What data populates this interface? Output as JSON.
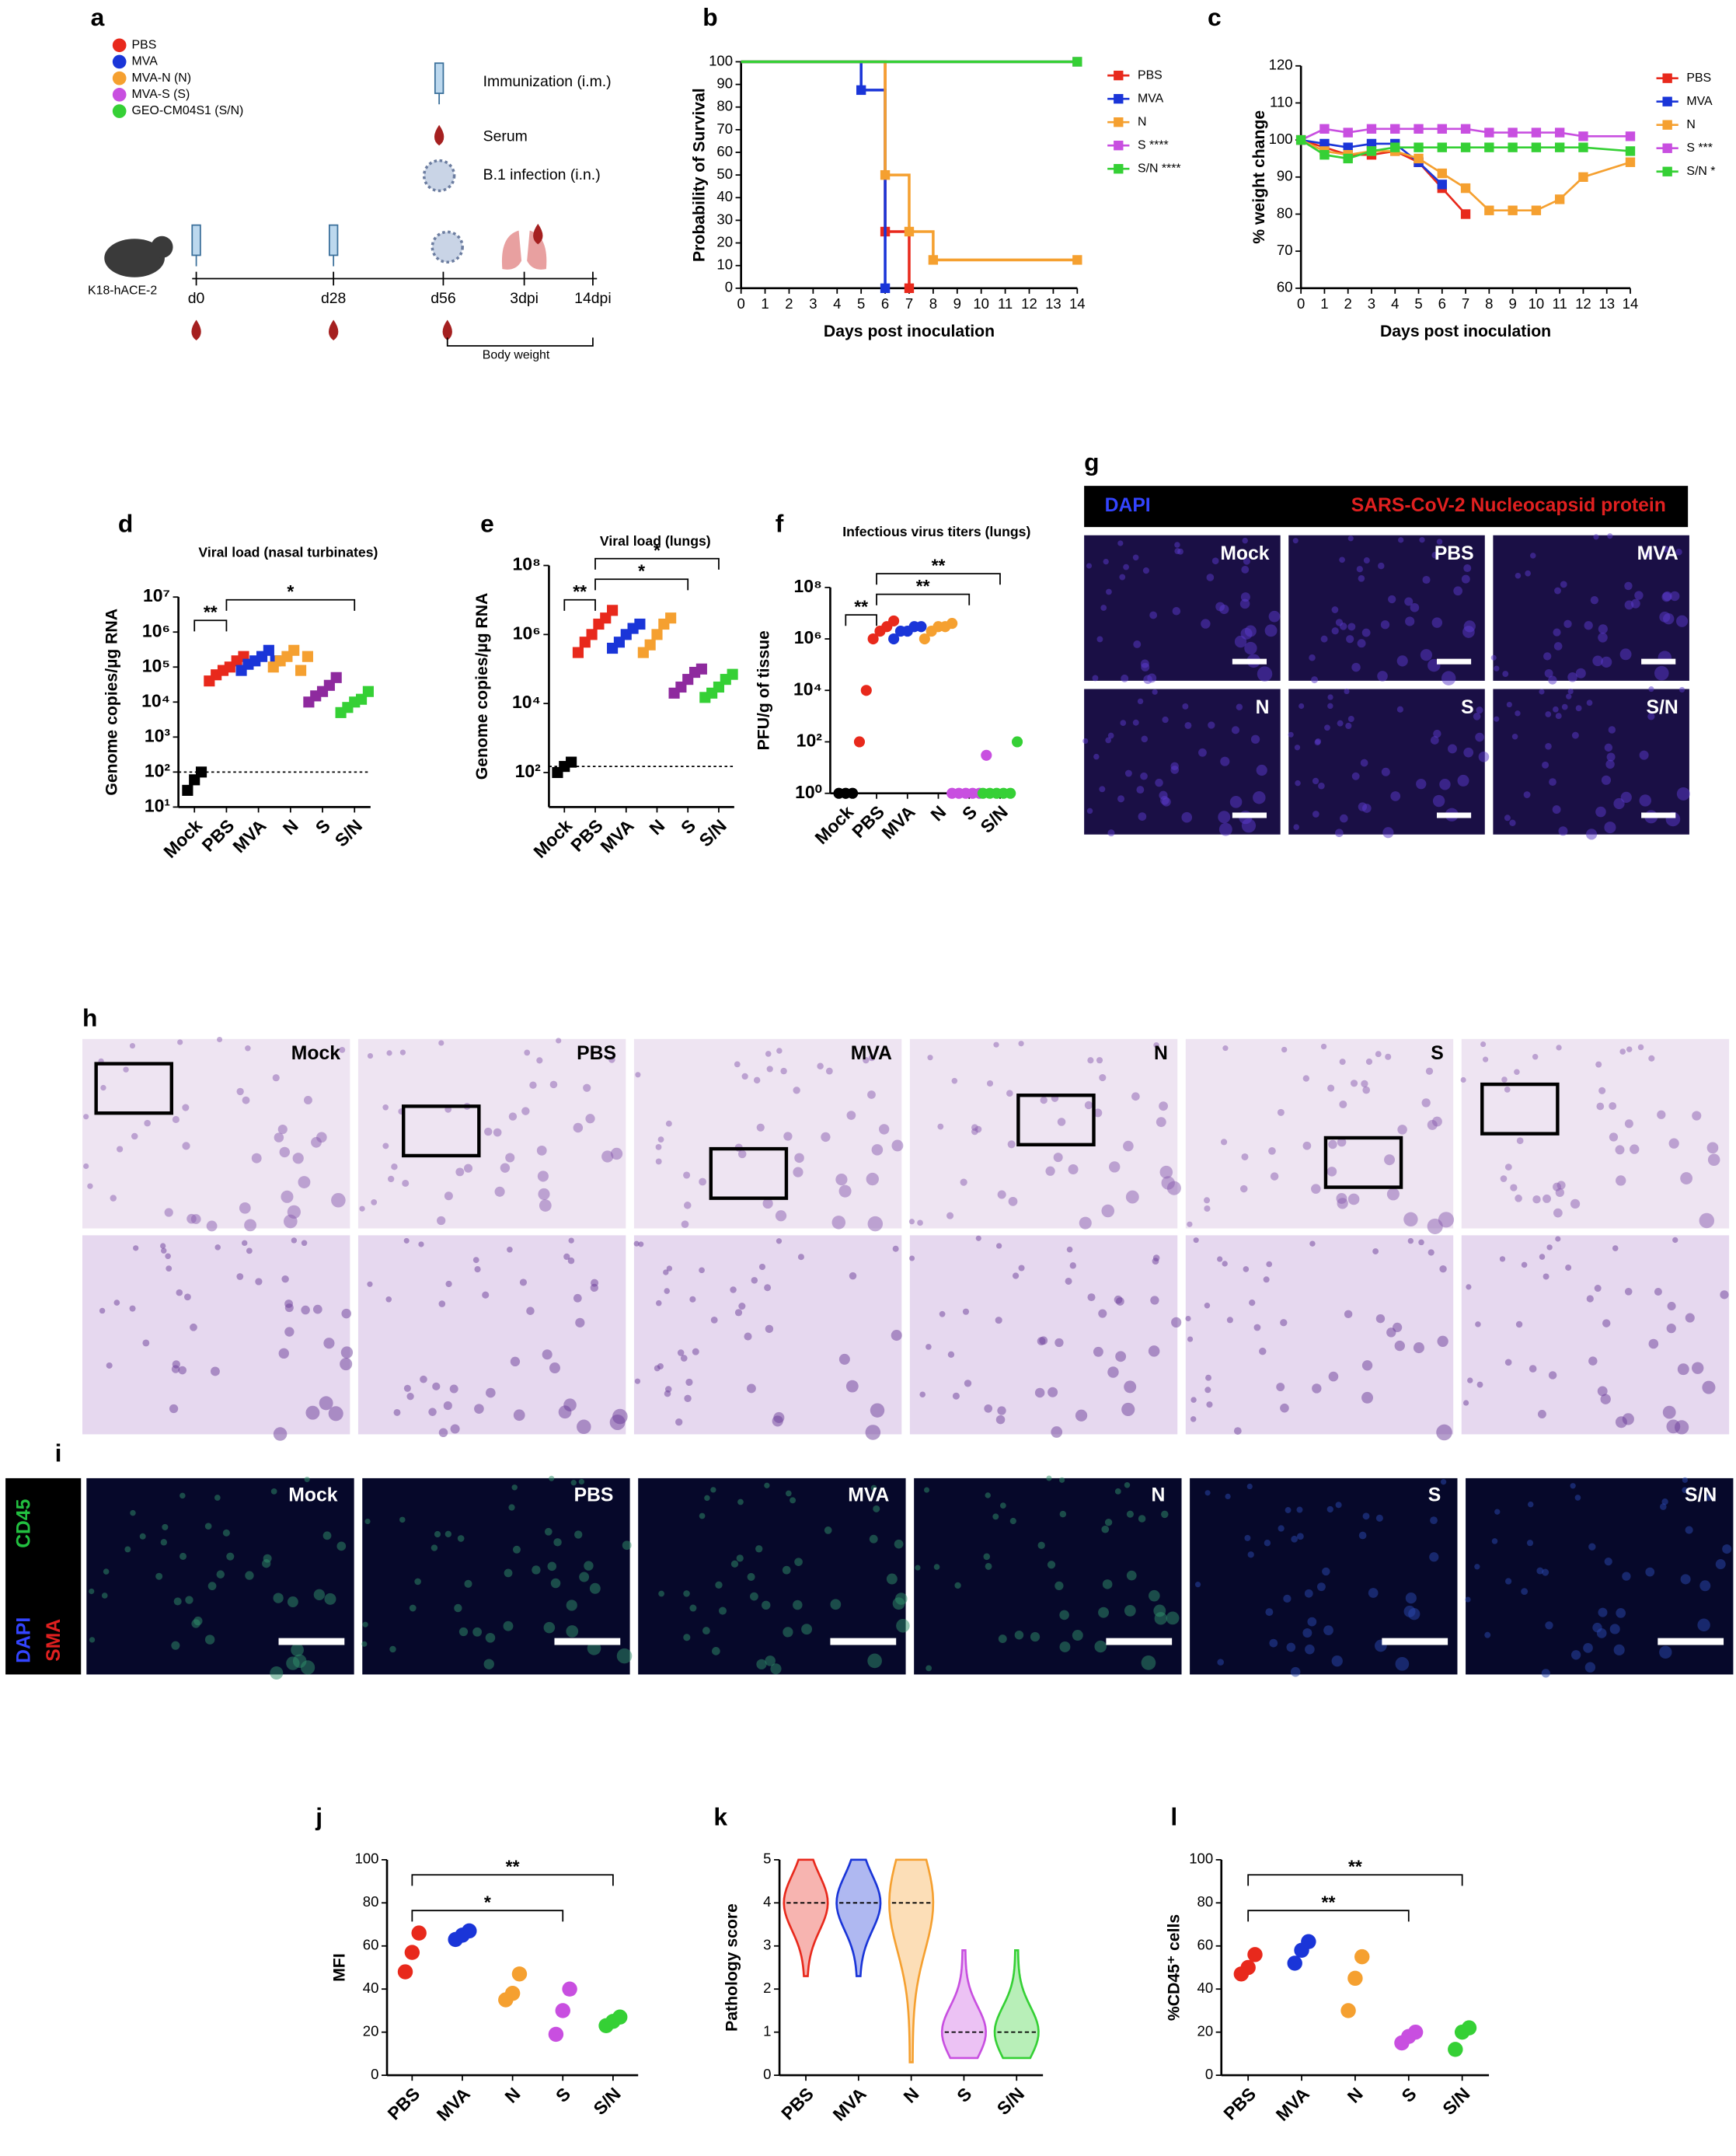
{
  "panel_a": {
    "panel": "a",
    "legend": [
      {
        "name": "PBS",
        "color": "#e8291c"
      },
      {
        "name": "MVA",
        "color": "#1a35d8"
      },
      {
        "name": "MVA-N (N)",
        "color": "#f5a030"
      },
      {
        "name": "MVA-S (S)",
        "color": "#c84fe0"
      },
      {
        "name": "GEO-CM04S1 (S/N)",
        "color": "#35d035"
      }
    ],
    "icons": [
      "Immunization (i.m.)",
      "Serum",
      "B.1 infection (i.n.)"
    ],
    "mouse": "K18-hACE-2",
    "timeline": [
      "d0",
      "d28",
      "d56",
      "3dpi",
      "14dpi"
    ],
    "bracket": "Body weight"
  },
  "chart_data": [
    {
      "type": "line",
      "panel": "b",
      "step": true,
      "ylabel": "Probability of Survival",
      "xlabel": "Days post inoculation",
      "xlim": [
        0,
        14
      ],
      "xticks": [
        0,
        1,
        2,
        3,
        4,
        5,
        6,
        7,
        8,
        9,
        10,
        11,
        12,
        13,
        14
      ],
      "ylim": [
        0,
        100
      ],
      "yticks": [
        0,
        10,
        20,
        30,
        40,
        50,
        60,
        70,
        80,
        90,
        100
      ],
      "series": [
        {
          "name": "PBS",
          "color": "#e8291c",
          "x": [
            0,
            6,
            7
          ],
          "values": [
            100,
            25,
            0
          ]
        },
        {
          "name": "MVA",
          "color": "#1a35d8",
          "x": [
            0,
            5,
            6
          ],
          "values": [
            100,
            87.5,
            0
          ]
        },
        {
          "name": "N",
          "color": "#f5a030",
          "x": [
            0,
            6,
            7,
            8,
            14
          ],
          "values": [
            100,
            50,
            25,
            12.5,
            12.5
          ]
        },
        {
          "name": "S ****",
          "color": "#c84fe0",
          "x": [
            0,
            14
          ],
          "values": [
            100,
            100
          ]
        },
        {
          "name": "S/N ****",
          "color": "#35d035",
          "x": [
            0,
            14
          ],
          "values": [
            100,
            100
          ]
        }
      ]
    },
    {
      "type": "line",
      "panel": "c",
      "ylabel": "% weight change",
      "xlabel": "Days post inoculation",
      "xlim": [
        0,
        14
      ],
      "xticks": [
        0,
        1,
        2,
        3,
        4,
        5,
        6,
        7,
        8,
        9,
        10,
        11,
        12,
        13,
        14
      ],
      "ylim": [
        60,
        120
      ],
      "yticks": [
        60,
        70,
        80,
        90,
        100,
        110,
        120
      ],
      "series": [
        {
          "name": "PBS",
          "color": "#e8291c",
          "x": [
            0,
            1,
            2,
            3,
            4,
            5,
            6,
            7
          ],
          "values": [
            100,
            98,
            96,
            96,
            97,
            94,
            87,
            80
          ]
        },
        {
          "name": "MVA",
          "color": "#1a35d8",
          "x": [
            0,
            1,
            2,
            3,
            4,
            5,
            6
          ],
          "values": [
            100,
            99,
            98,
            99,
            99,
            94,
            88
          ]
        },
        {
          "name": "N",
          "color": "#f5a030",
          "x": [
            0,
            1,
            2,
            3,
            4,
            5,
            6,
            7,
            8,
            9,
            10,
            11,
            12,
            14
          ],
          "values": [
            100,
            97,
            96,
            97,
            97,
            95,
            91,
            87,
            81,
            81,
            81,
            84,
            90,
            94
          ]
        },
        {
          "name": "S ***",
          "color": "#c84fe0",
          "x": [
            0,
            1,
            2,
            3,
            4,
            5,
            6,
            7,
            8,
            9,
            10,
            11,
            12,
            14
          ],
          "values": [
            100,
            103,
            102,
            103,
            103,
            103,
            103,
            103,
            102,
            102,
            102,
            102,
            101,
            101
          ]
        },
        {
          "name": "S/N *",
          "color": "#35d035",
          "x": [
            0,
            1,
            2,
            3,
            4,
            5,
            6,
            7,
            8,
            9,
            10,
            11,
            12,
            14
          ],
          "values": [
            100,
            96,
            95,
            97,
            98,
            98,
            98,
            98,
            98,
            98,
            98,
            98,
            98,
            97
          ]
        }
      ]
    },
    {
      "type": "strip",
      "panel": "d",
      "marker": "square",
      "title": "Viral load (nasal turbinates)",
      "ylabel": "Genome copies/µg RNA",
      "ylog": true,
      "ylim": [
        10,
        10000000
      ],
      "yticks": [
        {
          "value": 10,
          "label": "10¹"
        },
        {
          "value": 100,
          "label": "10²"
        },
        {
          "value": 1000,
          "label": "10³"
        },
        {
          "value": 10000,
          "label": "10⁴"
        },
        {
          "value": 100000,
          "label": "10⁵"
        },
        {
          "value": 1000000,
          "label": "10⁶"
        },
        {
          "value": 10000000,
          "label": "10⁷"
        }
      ],
      "threshold": 100,
      "categories": [
        "Mock",
        "PBS",
        "MVA",
        "N",
        "S",
        "S/N"
      ],
      "colors": [
        "#000000",
        "#e8291c",
        "#1a35d8",
        "#f5a030",
        "#8e2a9e",
        "#35d035"
      ],
      "values": [
        [
          30,
          60,
          100
        ],
        [
          40000,
          60000,
          80000,
          100000,
          150000,
          200000
        ],
        [
          80000,
          120000,
          150000,
          200000,
          300000,
          150000
        ],
        [
          100000,
          150000,
          200000,
          300000,
          80000,
          200000
        ],
        [
          10000,
          15000,
          20000,
          30000,
          50000
        ],
        [
          5000,
          7000,
          10000,
          12000,
          20000
        ]
      ],
      "brackets": [
        {
          "groups": [
            "Mock",
            "PBS"
          ],
          "label": "**"
        },
        {
          "groups": [
            "PBS",
            "S/N"
          ],
          "label": "*"
        }
      ]
    },
    {
      "type": "strip",
      "panel": "e",
      "marker": "square",
      "title": "Viral load (lungs)",
      "ylabel": "Genome copies/µg RNA",
      "ylog": true,
      "ylim": [
        10,
        100000000
      ],
      "yticks": [
        {
          "value": 100,
          "label": "10²"
        },
        {
          "value": 10000,
          "label": "10⁴"
        },
        {
          "value": 1000000,
          "label": "10⁶"
        },
        {
          "value": 100000000,
          "label": "10⁸"
        }
      ],
      "threshold": 150,
      "categories": [
        "Mock",
        "PBS",
        "MVA",
        "N",
        "S",
        "S/N"
      ],
      "colors": [
        "#000000",
        "#e8291c",
        "#1a35d8",
        "#f5a030",
        "#8e2a9e",
        "#35d035"
      ],
      "values": [
        [
          100,
          150,
          200
        ],
        [
          300000,
          600000,
          1000000,
          2000000,
          3000000,
          5000000
        ],
        [
          400000,
          600000,
          1000000,
          1500000,
          2000000
        ],
        [
          300000,
          500000,
          1000000,
          2000000,
          3000000
        ],
        [
          20000,
          30000,
          50000,
          80000,
          100000
        ],
        [
          15000,
          20000,
          30000,
          50000,
          70000
        ]
      ],
      "brackets": [
        {
          "groups": [
            "Mock",
            "PBS"
          ],
          "label": "**"
        },
        {
          "groups": [
            "PBS",
            "S"
          ],
          "label": "*"
        },
        {
          "groups": [
            "PBS",
            "S/N"
          ],
          "label": "*"
        }
      ]
    },
    {
      "type": "strip",
      "panel": "f",
      "marker": "circle",
      "title": "Infectious virus titers (lungs)",
      "ylabel": "PFU/g of tissue",
      "ylog": true,
      "ylim": [
        1,
        100000000
      ],
      "yticks": [
        {
          "value": 1,
          "label": "10⁰"
        },
        {
          "value": 100,
          "label": "10²"
        },
        {
          "value": 10000,
          "label": "10⁴"
        },
        {
          "value": 1000000,
          "label": "10⁶"
        },
        {
          "value": 100000000,
          "label": "10⁸"
        }
      ],
      "categories": [
        "Mock",
        "PBS",
        "MVA",
        "N",
        "S",
        "S/N"
      ],
      "colors": [
        "#000000",
        "#e8291c",
        "#1a35d8",
        "#f5a030",
        "#c84fe0",
        "#35d035"
      ],
      "values": [
        [
          1,
          1,
          1
        ],
        [
          100,
          10000,
          1000000,
          2000000,
          3000000,
          5000000
        ],
        [
          1000000,
          2000000,
          2000000,
          3000000,
          3000000
        ],
        [
          1000000,
          2000000,
          3000000,
          3000000,
          4000000
        ],
        [
          1,
          1,
          1,
          1,
          1,
          30
        ],
        [
          1,
          1,
          1,
          1,
          1,
          100
        ]
      ],
      "brackets": [
        {
          "groups": [
            "Mock",
            "PBS"
          ],
          "label": "**"
        },
        {
          "groups": [
            "PBS",
            "S"
          ],
          "label": "**"
        },
        {
          "groups": [
            "PBS",
            "S/N"
          ],
          "label": "**"
        }
      ]
    },
    {
      "type": "strip",
      "panel": "j",
      "marker": "circle",
      "ylabel": "MFI",
      "ylim": [
        0,
        100
      ],
      "yticks": [
        0,
        20,
        40,
        60,
        80,
        100
      ],
      "categories": [
        "PBS",
        "MVA",
        "N",
        "S",
        "S/N"
      ],
      "colors": [
        "#e8291c",
        "#1a35d8",
        "#f5a030",
        "#c84fe0",
        "#35d035"
      ],
      "values": [
        [
          48,
          57,
          66
        ],
        [
          63,
          65,
          67
        ],
        [
          35,
          38,
          47
        ],
        [
          19,
          30,
          40
        ],
        [
          23,
          25,
          27
        ]
      ],
      "brackets": [
        {
          "groups": [
            "PBS",
            "S"
          ],
          "label": "*"
        },
        {
          "groups": [
            "PBS",
            "S/N"
          ],
          "label": "**"
        }
      ]
    },
    {
      "type": "violin",
      "panel": "k",
      "ylabel": "Pathology score",
      "ylim": [
        0,
        5
      ],
      "yticks": [
        0,
        1,
        2,
        3,
        4,
        5
      ],
      "categories": [
        "PBS",
        "MVA",
        "N",
        "S",
        "S/N"
      ],
      "colors": [
        "#e8291c",
        "#1a35d8",
        "#f5a030",
        "#c84fe0",
        "#35d035"
      ],
      "medians": [
        4,
        4,
        4,
        1,
        1
      ],
      "mins": [
        2.3,
        2.3,
        0.3,
        0.4,
        0.4
      ],
      "maxs": [
        5,
        5,
        5,
        2.9,
        2.9
      ]
    },
    {
      "type": "strip",
      "panel": "l",
      "marker": "circle",
      "ylabel": "%CD45⁺ cells",
      "ylim": [
        0,
        100
      ],
      "yticks": [
        0,
        20,
        40,
        60,
        80,
        100
      ],
      "categories": [
        "PBS",
        "MVA",
        "N",
        "S",
        "S/N"
      ],
      "colors": [
        "#e8291c",
        "#1a35d8",
        "#f5a030",
        "#c84fe0",
        "#35d035"
      ],
      "values": [
        [
          47,
          50,
          56
        ],
        [
          52,
          58,
          62
        ],
        [
          30,
          45,
          55
        ],
        [
          15,
          18,
          20
        ],
        [
          12,
          20,
          22
        ]
      ],
      "brackets": [
        {
          "groups": [
            "PBS",
            "S"
          ],
          "label": "**"
        },
        {
          "groups": [
            "PBS",
            "S/N"
          ],
          "label": "**"
        }
      ]
    }
  ],
  "panel_g": {
    "panel": "g",
    "channels": [
      "DAPI",
      "SARS-CoV-2 Nucleocapsid protein"
    ],
    "tiles": [
      "Mock",
      "PBS",
      "MVA",
      "N",
      "S",
      "S/N"
    ]
  },
  "panel_h": {
    "panel": "h",
    "tiles": [
      "Mock",
      "PBS",
      "MVA",
      "N",
      "S",
      null
    ]
  },
  "panel_i": {
    "panel": "i",
    "channels": [
      "DAPI",
      "CD45",
      "SMA"
    ],
    "tiles": [
      "Mock",
      "PBS",
      "MVA",
      "N",
      "S",
      "S/N"
    ]
  }
}
